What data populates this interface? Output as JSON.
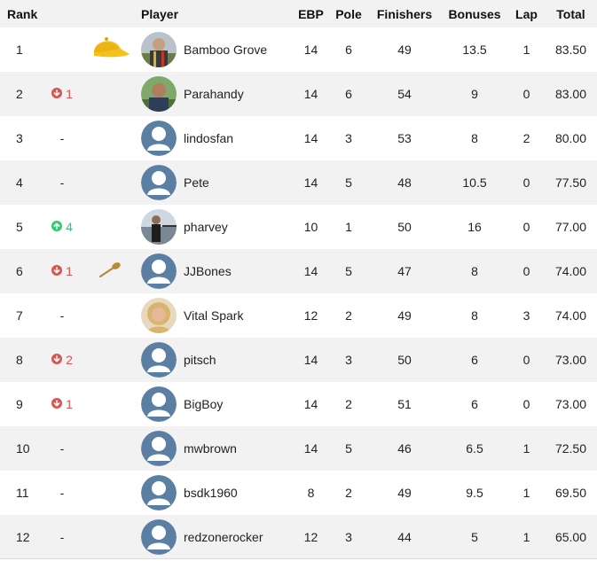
{
  "headers": {
    "rank": "Rank",
    "player": "Player",
    "ebp": "EBP",
    "pole": "Pole",
    "finishers": "Finishers",
    "bonuses": "Bonuses",
    "lap": "Lap",
    "total": "Total"
  },
  "rows": [
    {
      "rank": "1",
      "change": "",
      "dir": "",
      "badge": "cap-icon",
      "avatar": "photo-grove",
      "player": "Bamboo Grove",
      "ebp": "14",
      "pole": "6",
      "finishers": "49",
      "bonuses": "13.5",
      "lap": "1",
      "total": "83.50"
    },
    {
      "rank": "2",
      "change": "1",
      "dir": "down",
      "badge": "",
      "avatar": "photo-parahandy",
      "player": "Parahandy",
      "ebp": "14",
      "pole": "6",
      "finishers": "54",
      "bonuses": "9",
      "lap": "0",
      "total": "83.00"
    },
    {
      "rank": "3",
      "change": "-",
      "dir": "none",
      "badge": "",
      "avatar": "default-avatar",
      "player": "lindosfan",
      "ebp": "14",
      "pole": "3",
      "finishers": "53",
      "bonuses": "8",
      "lap": "2",
      "total": "80.00"
    },
    {
      "rank": "4",
      "change": "-",
      "dir": "none",
      "badge": "",
      "avatar": "default-avatar",
      "player": "Pete",
      "ebp": "14",
      "pole": "5",
      "finishers": "48",
      "bonuses": "10.5",
      "lap": "0",
      "total": "77.50"
    },
    {
      "rank": "5",
      "change": "4",
      "dir": "up",
      "badge": "",
      "avatar": "photo-pharvey",
      "player": "pharvey",
      "ebp": "10",
      "pole": "1",
      "finishers": "50",
      "bonuses": "16",
      "lap": "0",
      "total": "77.00"
    },
    {
      "rank": "6",
      "change": "1",
      "dir": "down",
      "badge": "spoon-icon",
      "avatar": "default-avatar",
      "player": "JJBones",
      "ebp": "14",
      "pole": "5",
      "finishers": "47",
      "bonuses": "8",
      "lap": "0",
      "total": "74.00"
    },
    {
      "rank": "7",
      "change": "-",
      "dir": "none",
      "badge": "",
      "avatar": "photo-vital-spark",
      "player": "Vital Spark",
      "ebp": "12",
      "pole": "2",
      "finishers": "49",
      "bonuses": "8",
      "lap": "3",
      "total": "74.00"
    },
    {
      "rank": "8",
      "change": "2",
      "dir": "down",
      "badge": "",
      "avatar": "default-avatar",
      "player": "pitsch",
      "ebp": "14",
      "pole": "3",
      "finishers": "50",
      "bonuses": "6",
      "lap": "0",
      "total": "73.00"
    },
    {
      "rank": "9",
      "change": "1",
      "dir": "down",
      "badge": "",
      "avatar": "default-avatar",
      "player": "BigBoy",
      "ebp": "14",
      "pole": "2",
      "finishers": "51",
      "bonuses": "6",
      "lap": "0",
      "total": "73.00"
    },
    {
      "rank": "10",
      "change": "-",
      "dir": "none",
      "badge": "",
      "avatar": "default-avatar",
      "player": "mwbrown",
      "ebp": "14",
      "pole": "5",
      "finishers": "46",
      "bonuses": "6.5",
      "lap": "1",
      "total": "72.50"
    },
    {
      "rank": "11",
      "change": "-",
      "dir": "none",
      "badge": "",
      "avatar": "default-avatar",
      "player": "bsdk1960",
      "ebp": "8",
      "pole": "2",
      "finishers": "49",
      "bonuses": "9.5",
      "lap": "1",
      "total": "69.50"
    },
    {
      "rank": "12",
      "change": "-",
      "dir": "none",
      "badge": "",
      "avatar": "default-avatar",
      "player": "redzonerocker",
      "ebp": "12",
      "pole": "3",
      "finishers": "44",
      "bonuses": "5",
      "lap": "1",
      "total": "65.00"
    }
  ],
  "colors": {
    "down": "#d9534f",
    "up": "#2ecc71",
    "avatar_blue": "#5b7ea3",
    "stripe": "#f2f2f2"
  }
}
